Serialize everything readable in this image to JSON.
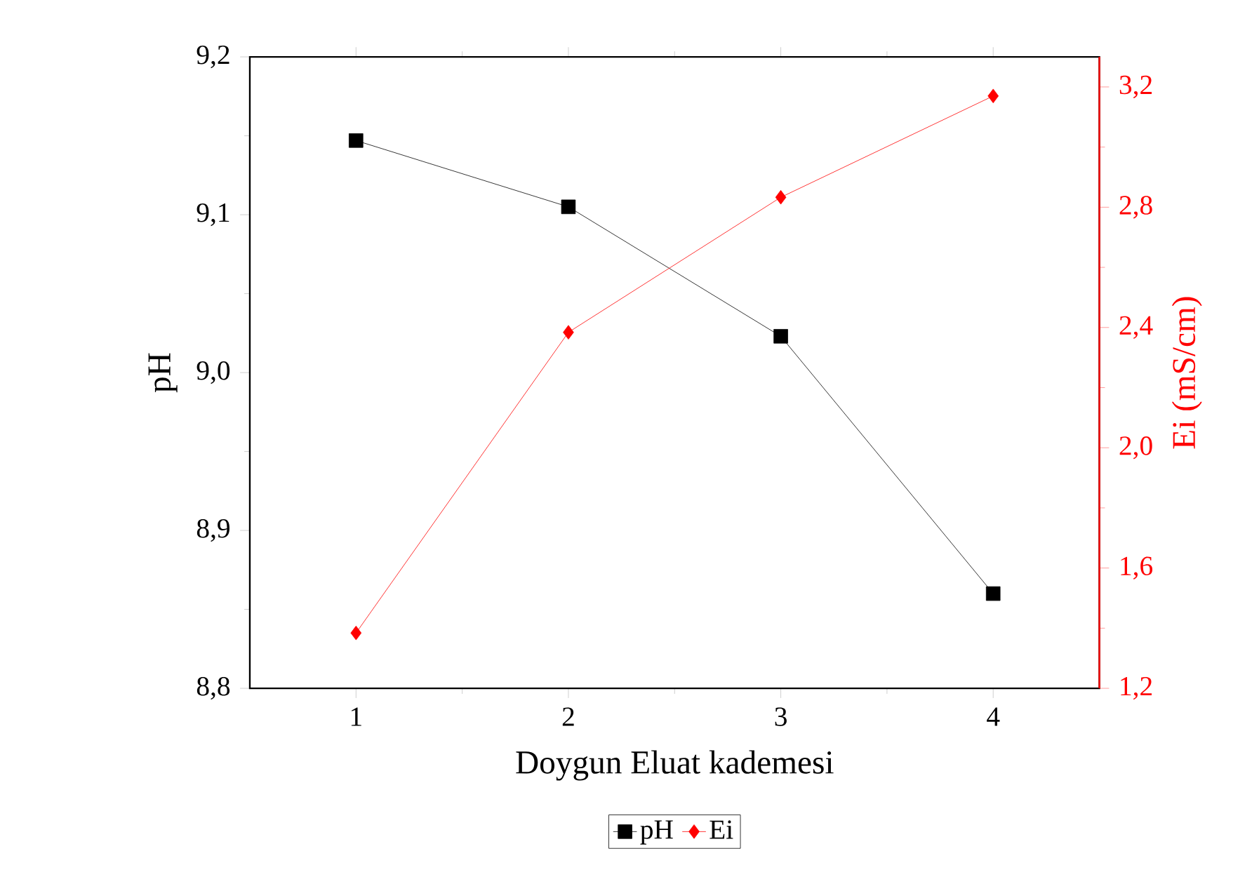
{
  "chart_data": {
    "type": "line",
    "xlabel": "Doygun Eluat kademesi",
    "ylabel": "pH",
    "y2label": "Ei (mS/cm)",
    "x": [
      1,
      2,
      3,
      4
    ],
    "series": [
      {
        "name": "pH",
        "color": "#000000",
        "marker": "square",
        "values": [
          9.147,
          9.105,
          9.023,
          8.86
        ]
      },
      {
        "name": "Ei",
        "color": "#ff0000",
        "marker": "diamond",
        "axis": "y2",
        "values": [
          1.384,
          2.384,
          2.833,
          3.17
        ]
      }
    ],
    "xlim": [
      0.5,
      4.5
    ],
    "xticks": [
      1,
      2,
      3,
      4
    ],
    "ylim": [
      8.8,
      9.2
    ],
    "yticks": [
      {
        "value": 8.8,
        "label": "8,8"
      },
      {
        "value": 8.9,
        "label": "8,9"
      },
      {
        "value": 9.0,
        "label": "9,0"
      },
      {
        "value": 9.1,
        "label": "9,1"
      },
      {
        "value": 9.2,
        "label": "9,2"
      }
    ],
    "y2lim": [
      1.2,
      3.3
    ],
    "y2ticks": [
      {
        "value": 1.2,
        "label": "1,2"
      },
      {
        "value": 1.6,
        "label": "1,6"
      },
      {
        "value": 2.0,
        "label": "2,0"
      },
      {
        "value": 2.4,
        "label": "2,4"
      },
      {
        "value": 2.8,
        "label": "2,8"
      },
      {
        "value": 3.2,
        "label": "3,2"
      }
    ],
    "legend": "bottom",
    "line_style": "solid"
  }
}
